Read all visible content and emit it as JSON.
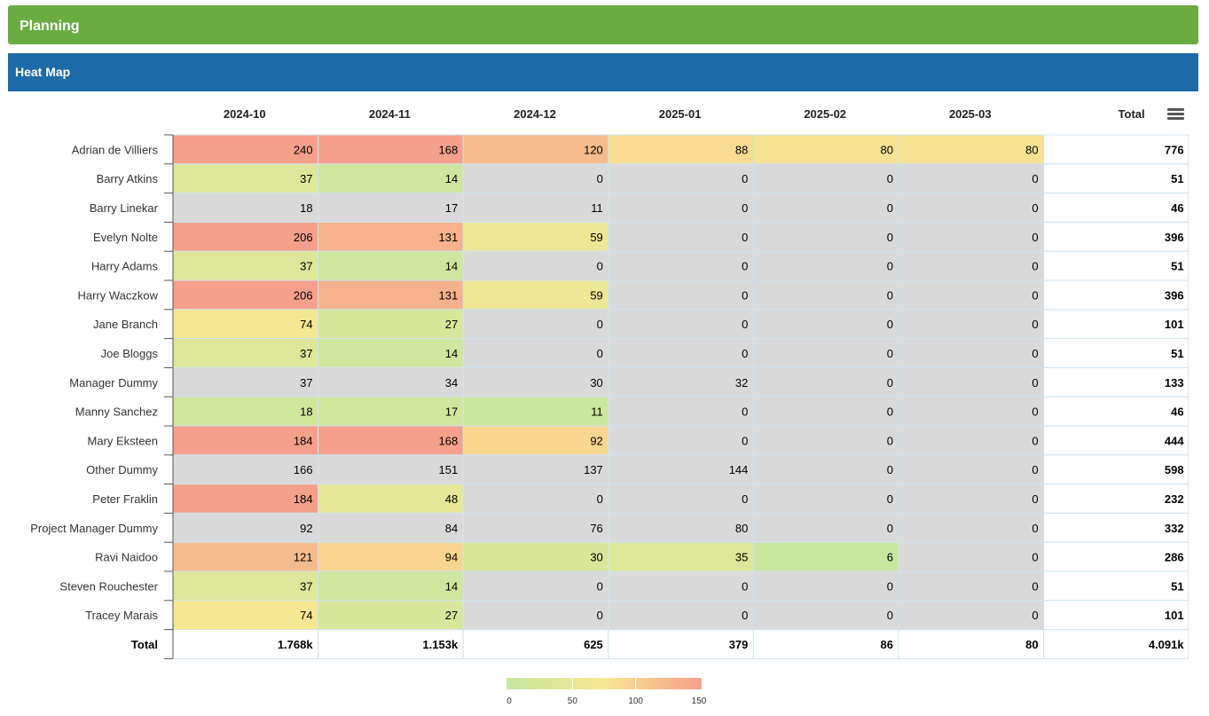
{
  "header": {
    "title": "Planning"
  },
  "panel": {
    "title": "Heat Map"
  },
  "icons": {
    "menu": "hamburger-menu-icon"
  },
  "colors": {
    "header_bg": "#6aab42",
    "panel_bg": "#1f6aa8",
    "zero_cell": "#d9d9d9",
    "scale": [
      "#c5e6a0",
      "#f7e792",
      "#f5a08a"
    ]
  },
  "chart_data": {
    "type": "heatmap",
    "x_categories": [
      "2024-10",
      "2024-11",
      "2024-12",
      "2025-01",
      "2025-02",
      "2025-03"
    ],
    "total_header": "Total",
    "y_categories": [
      "Adrian de Villiers",
      "Barry Atkins",
      "Barry Linekar",
      "Evelyn Nolte",
      "Harry Adams",
      "Harry Waczkow",
      "Jane Branch",
      "Joe Bloggs",
      "Manager Dummy",
      "Manny Sanchez",
      "Mary Eksteen",
      "Other Dummy",
      "Peter Fraklin",
      "Project Manager Dummy",
      "Ravi Naidoo",
      "Steven Rouchester",
      "Tracey Marais"
    ],
    "values": [
      [
        240,
        168,
        120,
        88,
        80,
        80
      ],
      [
        37,
        14,
        0,
        0,
        0,
        0
      ],
      [
        18,
        17,
        11,
        0,
        0,
        0
      ],
      [
        206,
        131,
        59,
        0,
        0,
        0
      ],
      [
        37,
        14,
        0,
        0,
        0,
        0
      ],
      [
        206,
        131,
        59,
        0,
        0,
        0
      ],
      [
        74,
        27,
        0,
        0,
        0,
        0
      ],
      [
        37,
        14,
        0,
        0,
        0,
        0
      ],
      [
        37,
        34,
        30,
        32,
        0,
        0
      ],
      [
        18,
        17,
        11,
        0,
        0,
        0
      ],
      [
        184,
        168,
        92,
        0,
        0,
        0
      ],
      [
        166,
        151,
        137,
        144,
        0,
        0
      ],
      [
        184,
        48,
        0,
        0,
        0,
        0
      ],
      [
        92,
        84,
        76,
        80,
        0,
        0
      ],
      [
        121,
        94,
        30,
        35,
        6,
        0
      ],
      [
        37,
        14,
        0,
        0,
        0,
        0
      ],
      [
        74,
        27,
        0,
        0,
        0,
        0
      ]
    ],
    "uncolored_rows": [
      "Barry Linekar",
      "Manager Dummy",
      "Other Dummy",
      "Project Manager Dummy"
    ],
    "row_totals": [
      "776",
      "51",
      "46",
      "396",
      "51",
      "396",
      "101",
      "51",
      "133",
      "46",
      "444",
      "598",
      "232",
      "332",
      "286",
      "51",
      "101"
    ],
    "total_row_label": "Total",
    "column_totals": [
      "1.768k",
      "1.153k",
      "625",
      "379",
      "86",
      "80"
    ],
    "grand_total": "4.091k",
    "color_scale": {
      "min": 0,
      "max": 150,
      "ticks": [
        "0",
        "50",
        "100",
        "150"
      ]
    },
    "legend_position": "bottom-center"
  }
}
